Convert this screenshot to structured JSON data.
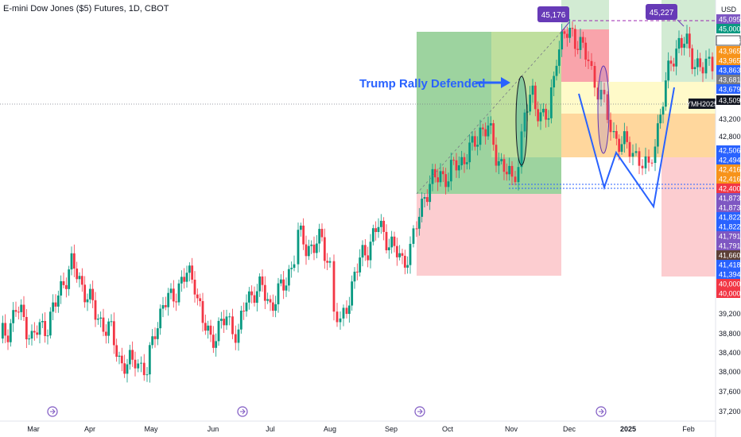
{
  "header": {
    "title": "E-mini Dow Jones ($5) Futures, 1D, CBOT",
    "currency": "USD"
  },
  "chart_data": {
    "type": "candlestick",
    "title": "E-mini Dow Jones ($5) Futures, 1D, CBOT",
    "ylabel": "USD",
    "ylim": [
      36800,
      45400
    ],
    "x_ticks": [
      "Mar",
      "Apr",
      "May",
      "Jun",
      "Jul",
      "Aug",
      "Sep",
      "Oct",
      "Nov",
      "Dec",
      "2025",
      "Feb"
    ],
    "y_ticks": [
      "45,000",
      "43,200",
      "42,800",
      "40,000",
      "39,200",
      "38,800",
      "38,400",
      "38,000",
      "37,600",
      "37,200"
    ],
    "annotation": "Trump Rally Defended",
    "callouts": [
      "45,176",
      "45,227"
    ],
    "symbol_tag": "YMH2025",
    "price_labels": [
      {
        "text": "45,095",
        "value": 45095,
        "color": "#7e57c2"
      },
      {
        "text": "45,000",
        "value": 45000,
        "color": "#089981"
      },
      {
        "text": "44,643",
        "value": 44643,
        "color": "#ffffff"
      },
      {
        "text": "43,965",
        "value": 43965,
        "color": "#f7931a"
      },
      {
        "text": "43,965",
        "value": 43965,
        "color": "#f7931a"
      },
      {
        "text": "43,863",
        "value": 43863,
        "color": "#2962ff"
      },
      {
        "text": "43,681",
        "value": 43681,
        "color": "#787b86"
      },
      {
        "text": "43,679",
        "value": 43679,
        "color": "#2962ff"
      },
      {
        "text": "43,509",
        "value": 43509,
        "color": "#131722"
      },
      {
        "text": "42,506",
        "value": 42506,
        "color": "#2962ff"
      },
      {
        "text": "42,494",
        "value": 42494,
        "color": "#2962ff"
      },
      {
        "text": "42,416",
        "value": 42416,
        "color": "#f7931a"
      },
      {
        "text": "42,416",
        "value": 42416,
        "color": "#f7931a"
      },
      {
        "text": "42,400",
        "value": 42400,
        "color": "#f23645"
      },
      {
        "text": "41,873",
        "value": 41873,
        "color": "#7e57c2"
      },
      {
        "text": "41,873",
        "value": 41873,
        "color": "#7e57c2"
      },
      {
        "text": "41,822",
        "value": 41822,
        "color": "#2962ff"
      },
      {
        "text": "41,822",
        "value": 41822,
        "color": "#2962ff"
      },
      {
        "text": "41,791",
        "value": 41791,
        "color": "#7e57c2"
      },
      {
        "text": "41,791",
        "value": 41791,
        "color": "#7e57c2"
      },
      {
        "text": "41,660",
        "value": 41660,
        "color": "#5d4037"
      },
      {
        "text": "41,418",
        "value": 41418,
        "color": "#2962ff"
      },
      {
        "text": "41,394",
        "value": 41394,
        "color": "#2962ff"
      },
      {
        "text": "40,000",
        "value": 40000,
        "color": "#f23645"
      },
      {
        "text": "40,000",
        "value": 40000,
        "color": "#f23645"
      }
    ],
    "colors": {
      "up": "#089981",
      "down": "#f23645",
      "long_zone": "#4caf50",
      "short_zone": "#f23645",
      "yellow_zone": "#fff59d",
      "orange_zone": "#ffb74d",
      "annotation": "#2962ff",
      "callout": "#673ab7"
    }
  }
}
